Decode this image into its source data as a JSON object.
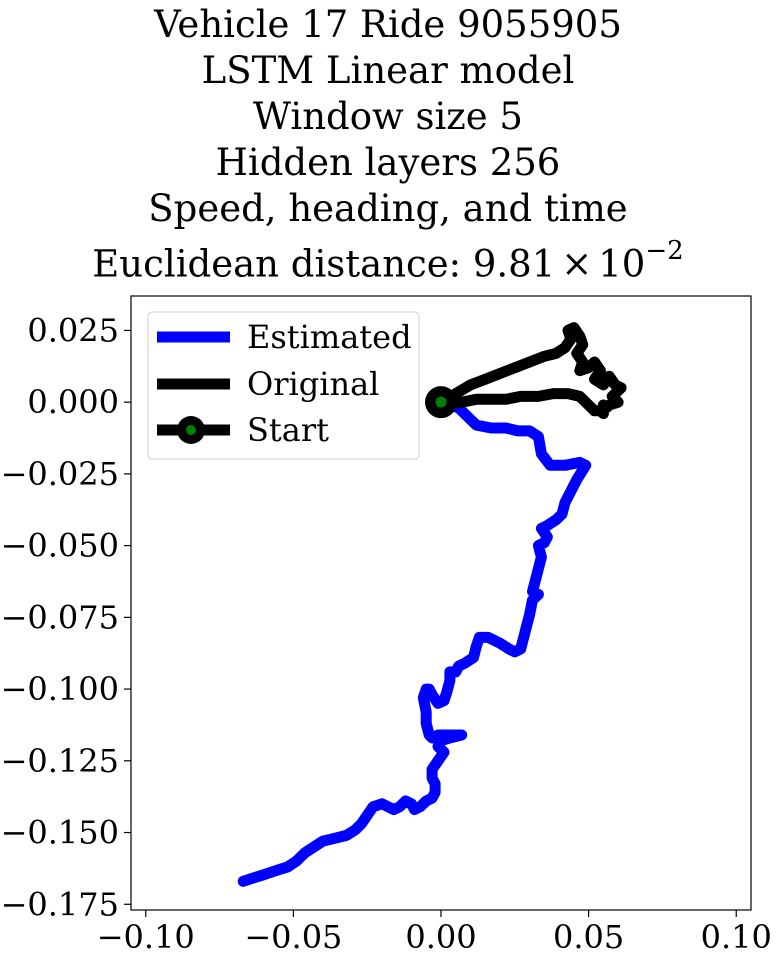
{
  "chart_data": {
    "type": "line",
    "title_lines": [
      "Vehicle 17 Ride 9055905",
      "LSTM Linear model",
      "Window size 5",
      "Hidden layers 256",
      "Speed, heading, and time"
    ],
    "title_metric": {
      "label": "Euclidean distance: 9.81",
      "times": "×",
      "base": "10",
      "exponent": "−2"
    },
    "xlim": [
      -0.105,
      0.105
    ],
    "ylim": [
      -0.177,
      0.037
    ],
    "x_ticks": [
      {
        "value": -0.1,
        "label": "−0.10"
      },
      {
        "value": -0.05,
        "label": "−0.05"
      },
      {
        "value": 0.0,
        "label": "0.00"
      },
      {
        "value": 0.05,
        "label": "0.05"
      },
      {
        "value": 0.1,
        "label": "0.10"
      }
    ],
    "y_ticks": [
      {
        "value": 0.025,
        "label": "0.025"
      },
      {
        "value": 0.0,
        "label": "0.000"
      },
      {
        "value": -0.025,
        "label": "−0.025"
      },
      {
        "value": -0.05,
        "label": "−0.050"
      },
      {
        "value": -0.075,
        "label": "−0.075"
      },
      {
        "value": -0.1,
        "label": "−0.100"
      },
      {
        "value": -0.125,
        "label": "−0.125"
      },
      {
        "value": -0.15,
        "label": "−0.150"
      },
      {
        "value": -0.175,
        "label": "−0.175"
      }
    ],
    "grid": false,
    "legend_position": "upper-left",
    "series": [
      {
        "name": "Estimated",
        "color": "#0000ff",
        "points": [
          [
            0.0,
            0.0
          ],
          [
            0.006,
            -0.002
          ],
          [
            0.01,
            -0.006
          ],
          [
            0.012,
            -0.008
          ],
          [
            0.017,
            -0.009
          ],
          [
            0.022,
            -0.009
          ],
          [
            0.026,
            -0.01
          ],
          [
            0.03,
            -0.01
          ],
          [
            0.033,
            -0.012
          ],
          [
            0.034,
            -0.018
          ],
          [
            0.037,
            -0.022
          ],
          [
            0.042,
            -0.022
          ],
          [
            0.047,
            -0.021
          ],
          [
            0.049,
            -0.022
          ],
          [
            0.046,
            -0.027
          ],
          [
            0.044,
            -0.031
          ],
          [
            0.042,
            -0.035
          ],
          [
            0.041,
            -0.039
          ],
          [
            0.039,
            -0.041
          ],
          [
            0.036,
            -0.043
          ],
          [
            0.034,
            -0.044
          ],
          [
            0.036,
            -0.047
          ],
          [
            0.035,
            -0.049
          ],
          [
            0.033,
            -0.05
          ],
          [
            0.034,
            -0.054
          ],
          [
            0.033,
            -0.058
          ],
          [
            0.032,
            -0.062
          ],
          [
            0.031,
            -0.066
          ],
          [
            0.033,
            -0.067
          ],
          [
            0.031,
            -0.069
          ],
          [
            0.03,
            -0.074
          ],
          [
            0.029,
            -0.078
          ],
          [
            0.028,
            -0.082
          ],
          [
            0.027,
            -0.086
          ],
          [
            0.025,
            -0.087
          ],
          [
            0.023,
            -0.086
          ],
          [
            0.02,
            -0.084
          ],
          [
            0.016,
            -0.082
          ],
          [
            0.013,
            -0.082
          ],
          [
            0.012,
            -0.085
          ],
          [
            0.011,
            -0.089
          ],
          [
            0.008,
            -0.091
          ],
          [
            0.006,
            -0.092
          ],
          [
            0.005,
            -0.094
          ],
          [
            0.003,
            -0.094
          ],
          [
            0.003,
            -0.097
          ],
          [
            0.002,
            -0.101
          ],
          [
            0.001,
            -0.104
          ],
          [
            -0.001,
            -0.105
          ],
          [
            -0.003,
            -0.102
          ],
          [
            -0.004,
            -0.1
          ],
          [
            -0.005,
            -0.1
          ],
          [
            -0.006,
            -0.103
          ],
          [
            -0.005,
            -0.108
          ],
          [
            -0.005,
            -0.112
          ],
          [
            -0.004,
            -0.116
          ],
          [
            -0.003,
            -0.117
          ],
          [
            -0.001,
            -0.116
          ],
          [
            0.003,
            -0.116
          ],
          [
            0.007,
            -0.116
          ],
          [
            0.003,
            -0.117
          ],
          [
            0.0,
            -0.118
          ],
          [
            -0.001,
            -0.12
          ],
          [
            0.001,
            -0.122
          ],
          [
            -0.001,
            -0.125
          ],
          [
            -0.003,
            -0.128
          ],
          [
            -0.003,
            -0.131
          ],
          [
            -0.002,
            -0.133
          ],
          [
            -0.002,
            -0.136
          ],
          [
            -0.003,
            -0.138
          ],
          [
            -0.005,
            -0.139
          ],
          [
            -0.007,
            -0.141
          ],
          [
            -0.009,
            -0.142
          ],
          [
            -0.01,
            -0.14
          ],
          [
            -0.012,
            -0.139
          ],
          [
            -0.014,
            -0.141
          ],
          [
            -0.016,
            -0.142
          ],
          [
            -0.018,
            -0.141
          ],
          [
            -0.02,
            -0.14
          ],
          [
            -0.023,
            -0.141
          ],
          [
            -0.025,
            -0.144
          ],
          [
            -0.027,
            -0.147
          ],
          [
            -0.029,
            -0.149
          ],
          [
            -0.032,
            -0.151
          ],
          [
            -0.036,
            -0.152
          ],
          [
            -0.04,
            -0.153
          ],
          [
            -0.043,
            -0.155
          ],
          [
            -0.046,
            -0.157
          ],
          [
            -0.049,
            -0.16
          ],
          [
            -0.052,
            -0.162
          ],
          [
            -0.055,
            -0.163
          ],
          [
            -0.058,
            -0.164
          ],
          [
            -0.061,
            -0.165
          ],
          [
            -0.064,
            -0.166
          ],
          [
            -0.067,
            -0.167
          ]
        ]
      },
      {
        "name": "Original",
        "color": "#000000",
        "points": [
          [
            0.0,
            0.0
          ],
          [
            0.005,
            0.003
          ],
          [
            0.01,
            0.006
          ],
          [
            0.015,
            0.008
          ],
          [
            0.02,
            0.01
          ],
          [
            0.025,
            0.012
          ],
          [
            0.03,
            0.014
          ],
          [
            0.035,
            0.016
          ],
          [
            0.039,
            0.017
          ],
          [
            0.042,
            0.019
          ],
          [
            0.044,
            0.022
          ],
          [
            0.043,
            0.025
          ],
          [
            0.045,
            0.026
          ],
          [
            0.047,
            0.023
          ],
          [
            0.048,
            0.02
          ],
          [
            0.046,
            0.017
          ],
          [
            0.048,
            0.014
          ],
          [
            0.047,
            0.011
          ],
          [
            0.05,
            0.012
          ],
          [
            0.052,
            0.014
          ],
          [
            0.054,
            0.011
          ],
          [
            0.052,
            0.008
          ],
          [
            0.055,
            0.006
          ],
          [
            0.057,
            0.009
          ],
          [
            0.059,
            0.006
          ],
          [
            0.061,
            0.005
          ],
          [
            0.058,
            0.002
          ],
          [
            0.06,
            0.0
          ],
          [
            0.057,
            -0.001
          ],
          [
            0.056,
            -0.002
          ],
          [
            0.055,
            -0.001
          ],
          [
            0.055,
            -0.004
          ],
          [
            0.054,
            -0.003
          ],
          [
            0.052,
            -0.003
          ],
          [
            0.05,
            -0.001
          ],
          [
            0.047,
            0.002
          ],
          [
            0.043,
            0.003
          ],
          [
            0.038,
            0.003
          ],
          [
            0.033,
            0.002
          ],
          [
            0.027,
            0.002
          ],
          [
            0.022,
            0.001
          ],
          [
            0.017,
            0.001
          ],
          [
            0.012,
            0.001
          ],
          [
            0.007,
            0.0
          ],
          [
            0.003,
            0.0
          ],
          [
            0.0,
            0.0
          ]
        ]
      },
      {
        "name": "Start",
        "color": "#000000",
        "marker_face": "#008000",
        "points": [
          [
            0.0,
            0.0
          ]
        ]
      }
    ]
  }
}
